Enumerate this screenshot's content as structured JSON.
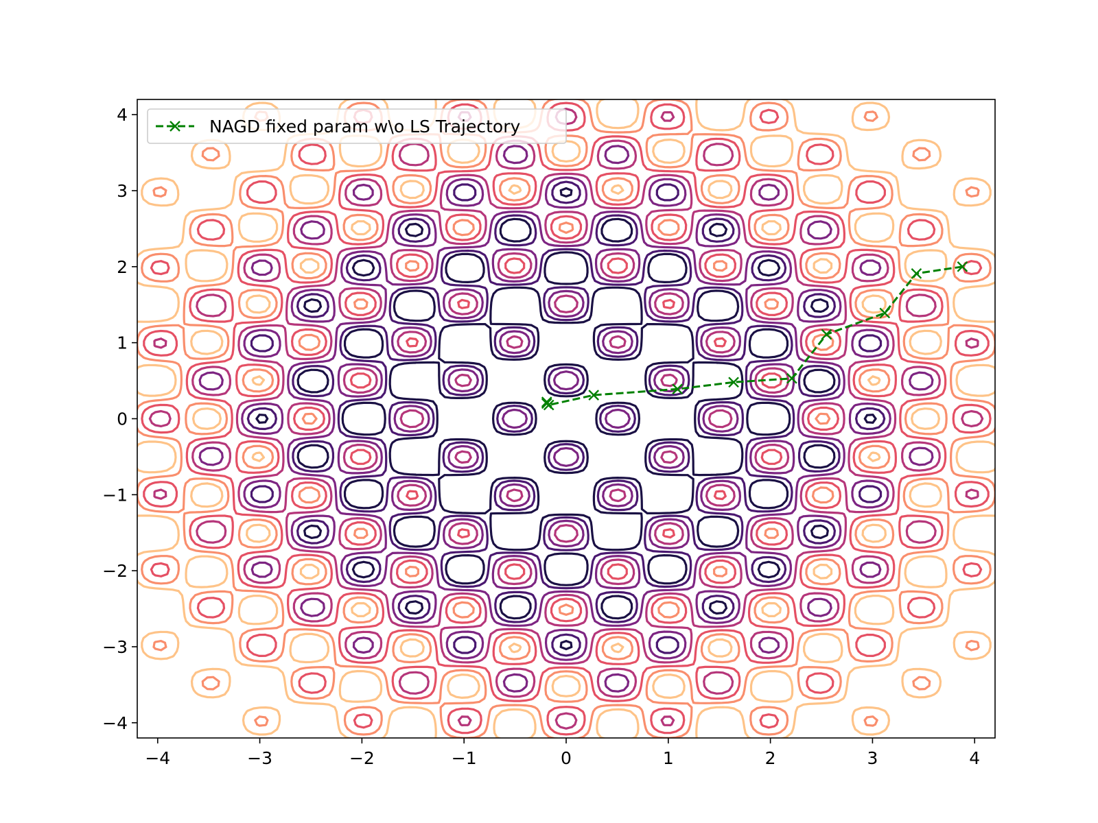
{
  "chart_data": {
    "type": "line",
    "xlim": [
      -4.2,
      4.2
    ],
    "ylim": [
      -4.2,
      4.2
    ],
    "xticks": [
      -4,
      -3,
      -2,
      -1,
      0,
      1,
      2,
      3,
      4
    ],
    "yticks": [
      -4,
      -3,
      -2,
      -1,
      0,
      1,
      2,
      3,
      4
    ],
    "xtick_labels": [
      "−4",
      "−3",
      "−2",
      "−1",
      "0",
      "1",
      "2",
      "3",
      "4"
    ],
    "ytick_labels": [
      "−4",
      "−3",
      "−2",
      "−1",
      "0",
      "1",
      "2",
      "3",
      "4"
    ],
    "grid": false,
    "legend_placement": "upper-left",
    "background": "contour",
    "contour_colors": [
      "#1a1044",
      "#4a1870",
      "#7d2582",
      "#b5367a",
      "#e55064",
      "#f98e6d",
      "#fec388"
    ],
    "series": [
      {
        "name": "NAGD fixed param w\\o LS Trajectory",
        "color": "#008000",
        "linestyle": "dashed",
        "marker": "x",
        "x": [
          3.88,
          3.43,
          3.12,
          2.55,
          2.21,
          1.64,
          1.09,
          0.27,
          -0.17,
          -0.19,
          -0.19
        ],
        "y": [
          2.0,
          1.91,
          1.39,
          1.11,
          0.53,
          0.48,
          0.39,
          0.31,
          0.18,
          0.2,
          0.22
        ]
      }
    ]
  }
}
